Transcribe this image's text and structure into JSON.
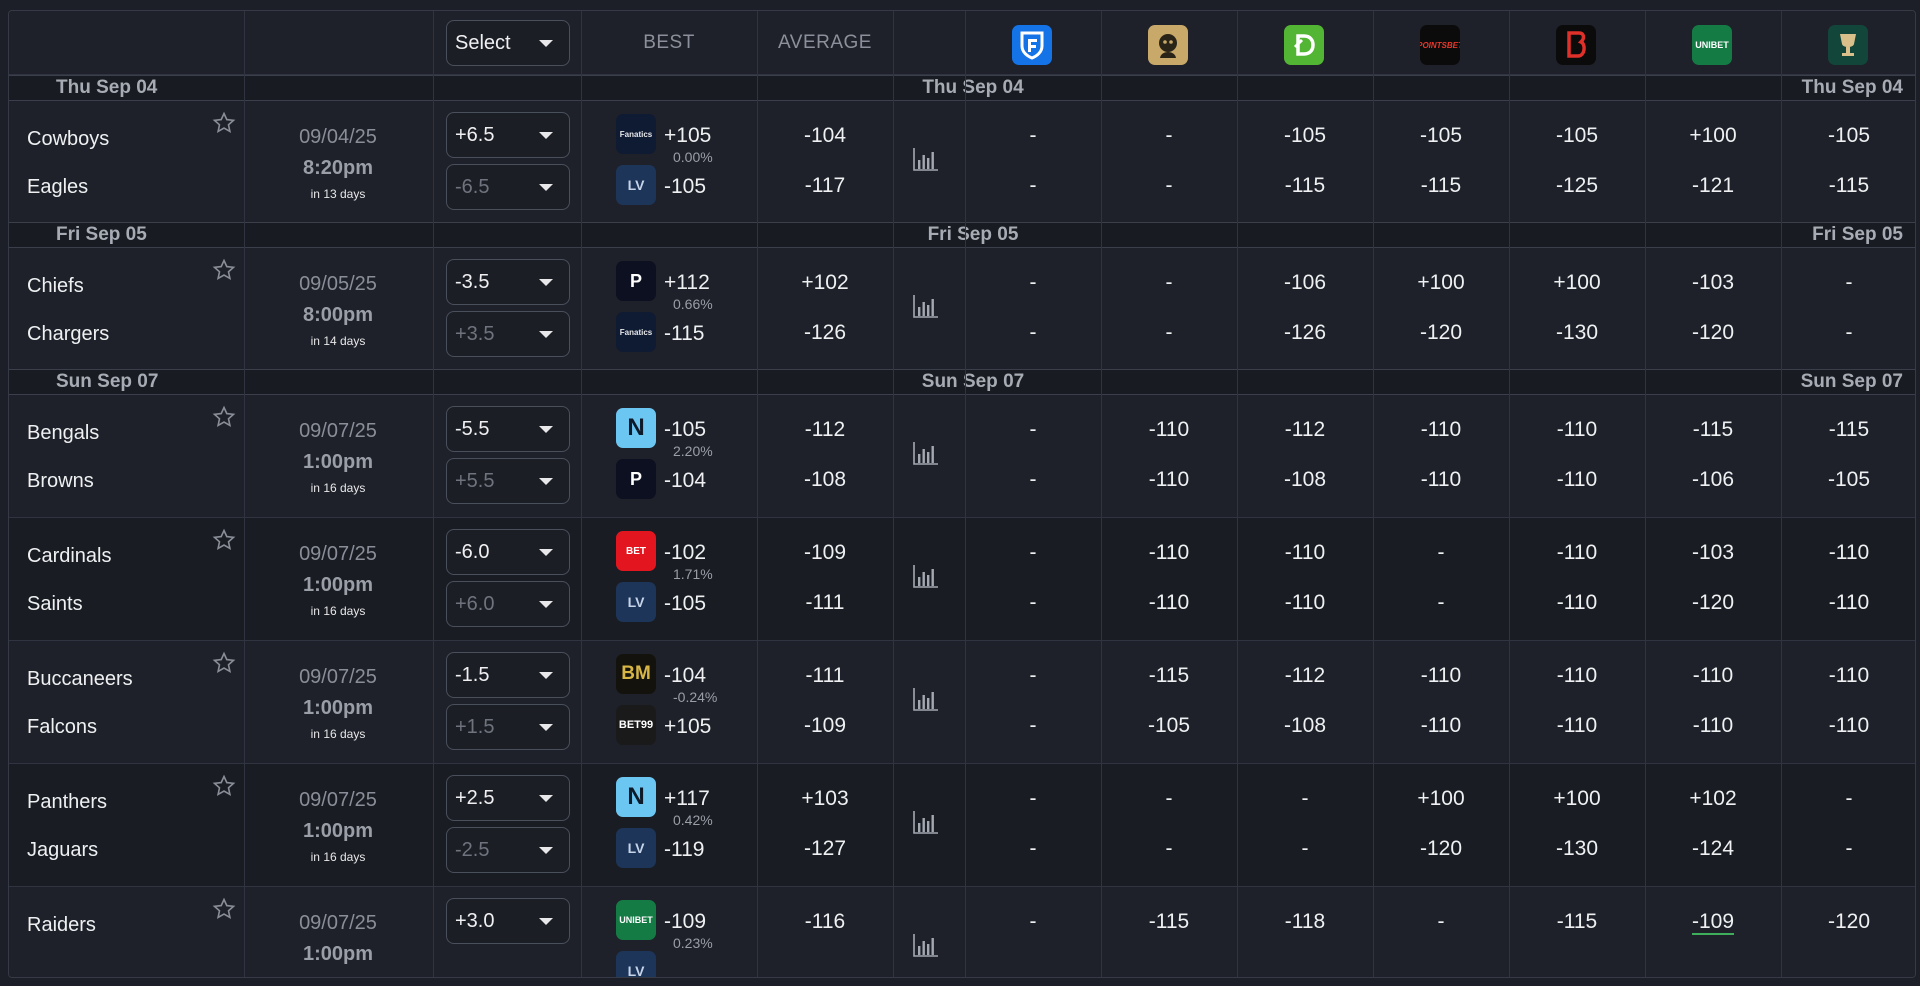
{
  "header": {
    "select_label": "Select",
    "best_label": "BEST",
    "average_label": "AVERAGE",
    "books": [
      {
        "icon": "fanduel-icon",
        "color": "#1473e6"
      },
      {
        "icon": "betmgm-icon",
        "color": "#c9a96a"
      },
      {
        "icon": "draftkings-icon",
        "color": "#53b534"
      },
      {
        "icon": "pointsbet-icon",
        "color": "#0b0b0b"
      },
      {
        "icon": "bet365-icon",
        "color": "#0b0b0b"
      },
      {
        "icon": "unibet-icon",
        "color": "#147b45"
      },
      {
        "icon": "caesars-icon",
        "color": "#12463a"
      }
    ],
    "unibet_text": "UNIBET",
    "pointsbet_text": "POINTSBET"
  },
  "sections": [
    {
      "label": "Thu Sep 04",
      "games": [
        {
          "away": "Cowboys",
          "home": "Eagles",
          "date": "09/04/25",
          "time": "8:20pm",
          "until": "in 13 days",
          "spread_top": "+6.5",
          "spread_bottom": "-6.5",
          "best_top": {
            "book": "fanatics",
            "odds": "+105",
            "pct": "0.00%"
          },
          "best_bottom": {
            "book": "lowvig",
            "odds": "-105"
          },
          "avg_top": "-104",
          "avg_bottom": "-117",
          "books_top": [
            "-",
            "-",
            "-105",
            "-105",
            "-105",
            "+100",
            "-105"
          ],
          "books_bottom": [
            "-",
            "-",
            "-115",
            "-115",
            "-125",
            "-121",
            "-115"
          ]
        }
      ]
    },
    {
      "label": "Fri Sep 05",
      "games": [
        {
          "away": "Chiefs",
          "home": "Chargers",
          "date": "09/05/25",
          "time": "8:00pm",
          "until": "in 14 days",
          "spread_top": "-3.5",
          "spread_bottom": "+3.5",
          "best_top": {
            "book": "prophetx",
            "odds": "+112",
            "pct": "0.66%"
          },
          "best_bottom": {
            "book": "fanatics",
            "odds": "-115"
          },
          "avg_top": "+102",
          "avg_bottom": "-126",
          "books_top": [
            "-",
            "-",
            "-106",
            "+100",
            "+100",
            "-103",
            "-"
          ],
          "books_bottom": [
            "-",
            "-",
            "-126",
            "-120",
            "-130",
            "-120",
            "-"
          ]
        }
      ]
    },
    {
      "label": "Sun Sep 07",
      "games": [
        {
          "away": "Bengals",
          "home": "Browns",
          "date": "09/07/25",
          "time": "1:00pm",
          "until": "in 16 days",
          "spread_top": "-5.5",
          "spread_bottom": "+5.5",
          "best_top": {
            "book": "novig",
            "odds": "-105",
            "pct": "2.20%"
          },
          "best_bottom": {
            "book": "prophetx",
            "odds": "-104"
          },
          "avg_top": "-112",
          "avg_bottom": "-108",
          "books_top": [
            "-",
            "-110",
            "-112",
            "-110",
            "-110",
            "-115",
            "-115"
          ],
          "books_bottom": [
            "-",
            "-110",
            "-108",
            "-110",
            "-110",
            "-106",
            "-105"
          ]
        },
        {
          "away": "Cardinals",
          "home": "Saints",
          "date": "09/07/25",
          "time": "1:00pm",
          "until": "in 16 days",
          "spread_top": "-6.0",
          "spread_bottom": "+6.0",
          "best_top": {
            "book": "virginbet",
            "odds": "-102",
            "pct": "1.71%"
          },
          "best_bottom": {
            "book": "lowvig",
            "odds": "-105"
          },
          "avg_top": "-109",
          "avg_bottom": "-111",
          "books_top": [
            "-",
            "-110",
            "-110",
            "-",
            "-110",
            "-103",
            "-110"
          ],
          "books_bottom": [
            "-",
            "-110",
            "-110",
            "-",
            "-110",
            "-120",
            "-110"
          ]
        },
        {
          "away": "Buccaneers",
          "home": "Falcons",
          "date": "09/07/25",
          "time": "1:00pm",
          "until": "in 16 days",
          "spread_top": "-1.5",
          "spread_bottom": "+1.5",
          "best_top": {
            "book": "betmgm-bm",
            "odds": "-104",
            "pct": "-0.24%"
          },
          "best_bottom": {
            "book": "bet99",
            "odds": "+105"
          },
          "avg_top": "-111",
          "avg_bottom": "-109",
          "books_top": [
            "-",
            "-115",
            "-112",
            "-110",
            "-110",
            "-110",
            "-110"
          ],
          "books_bottom": [
            "-",
            "-105",
            "-108",
            "-110",
            "-110",
            "-110",
            "-110"
          ]
        },
        {
          "away": "Panthers",
          "home": "Jaguars",
          "date": "09/07/25",
          "time": "1:00pm",
          "until": "in 16 days",
          "spread_top": "+2.5",
          "spread_bottom": "-2.5",
          "best_top": {
            "book": "novig",
            "odds": "+117",
            "pct": "0.42%"
          },
          "best_bottom": {
            "book": "lowvig",
            "odds": "-119"
          },
          "avg_top": "+103",
          "avg_bottom": "-127",
          "books_top": [
            "-",
            "-",
            "-",
            "+100",
            "+100",
            "+102",
            "-"
          ],
          "books_bottom": [
            "-",
            "-",
            "-",
            "-120",
            "-130",
            "-124",
            "-"
          ]
        },
        {
          "away": "Raiders",
          "home": "",
          "date": "09/07/25",
          "time": "1:00pm",
          "until": "",
          "spread_top": "+3.0",
          "spread_bottom": "",
          "best_top": {
            "book": "unibet",
            "odds": "-109",
            "pct": "0.23%"
          },
          "best_bottom": {
            "book": "lowvig",
            "odds": ""
          },
          "avg_top": "-116",
          "avg_bottom": "",
          "books_top": [
            "-",
            "-115",
            "-118",
            "-",
            "-115",
            "-109",
            "-120"
          ],
          "books_bottom": [
            "",
            "",
            "",
            "",
            "",
            "",
            ""
          ]
        }
      ]
    }
  ],
  "logo_text": {
    "fanatics": "Fanatics",
    "lowvig": "LV",
    "prophetx": "P",
    "novig": "N",
    "virginbet": "BET",
    "betmgm-bm": "BM",
    "bet99": "BET99",
    "unibet": "UNIBET"
  }
}
